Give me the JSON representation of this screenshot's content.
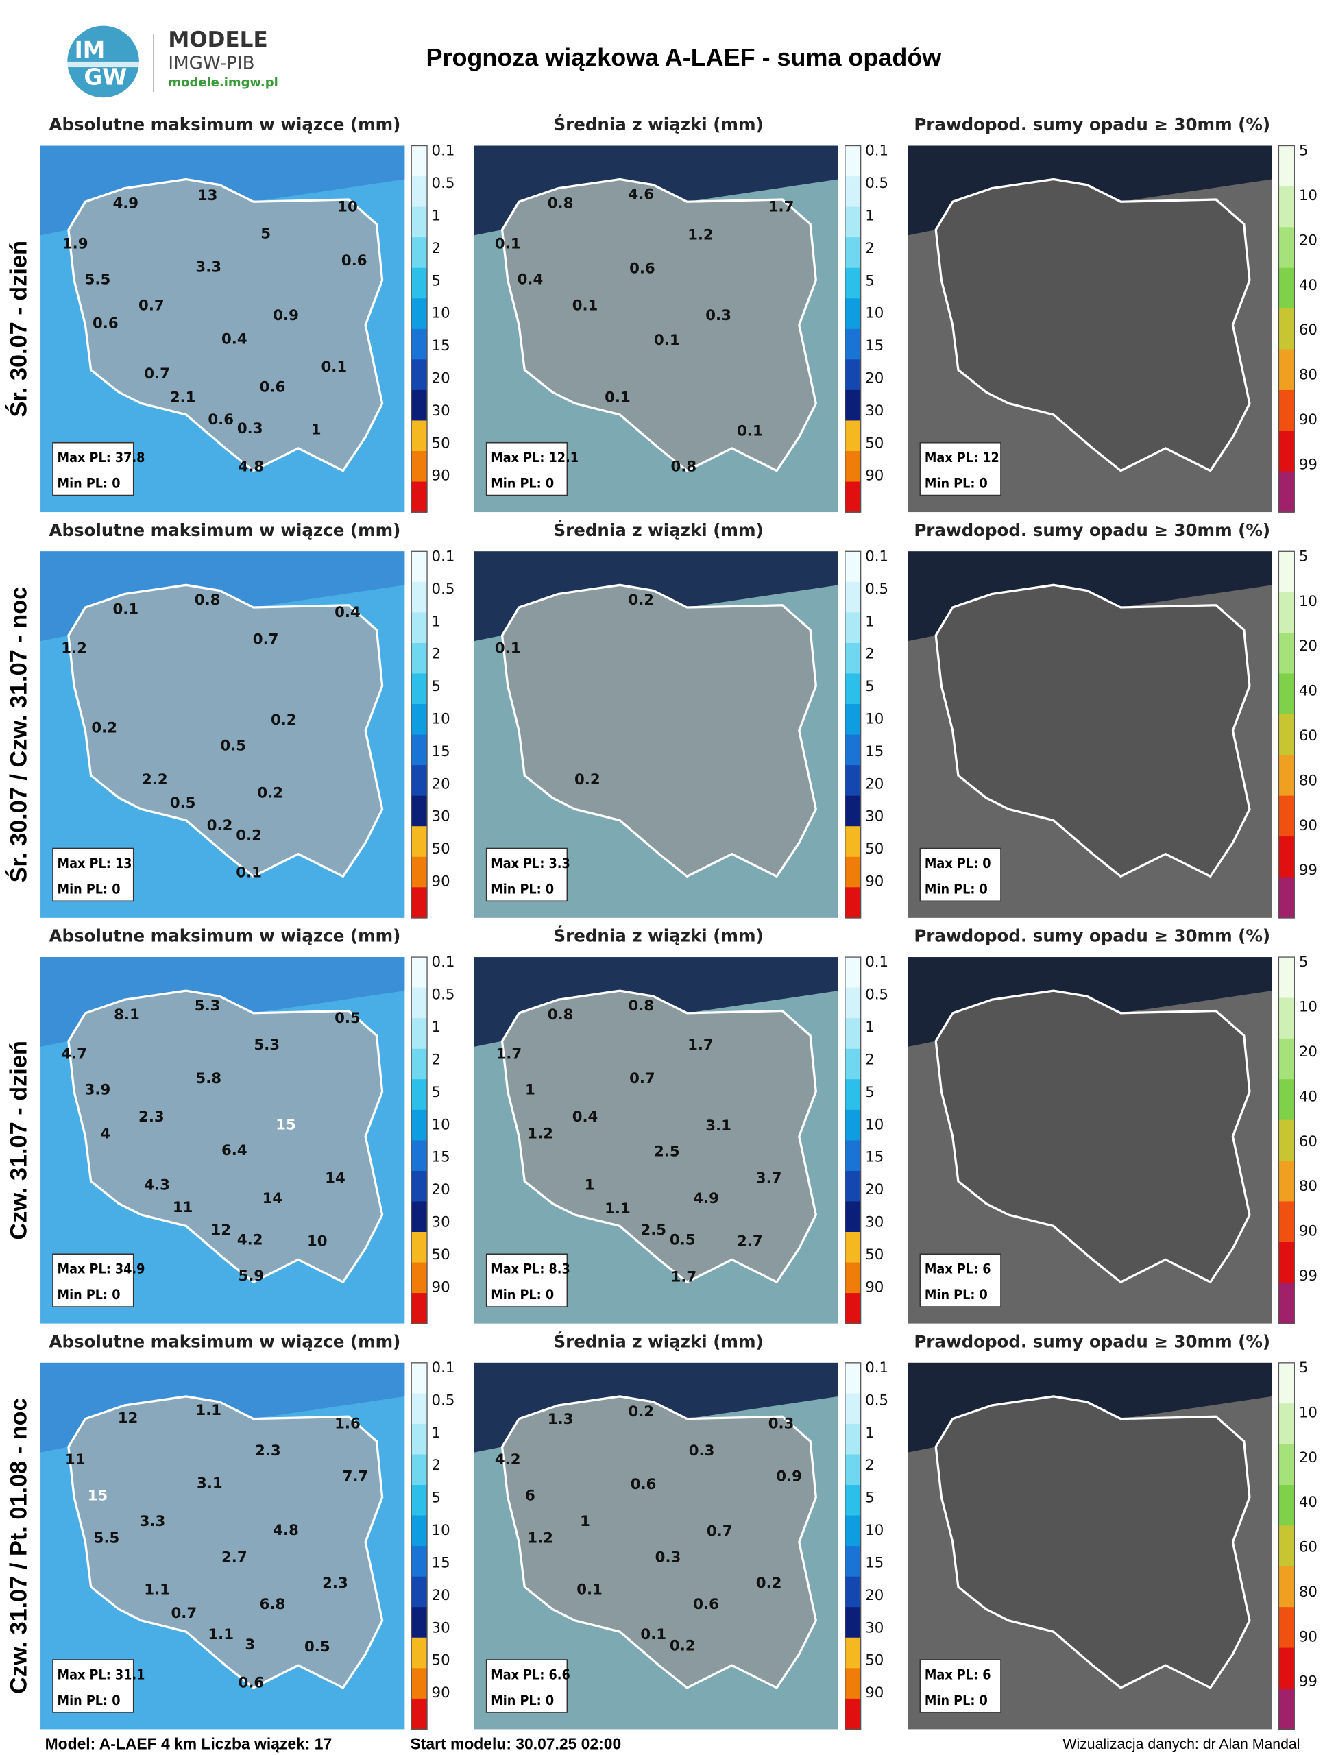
{
  "header": {
    "logo_lines": [
      "IM",
      "GW"
    ],
    "brand": "MODELE",
    "org": "IMGW-PIB",
    "url": "modele.imgw.pl",
    "title": "Prognoza wiązkowa A-LAEF - suma opadów"
  },
  "legends": {
    "precip": [
      "0.1",
      "0.5",
      "1",
      "2",
      "5",
      "10",
      "15",
      "20",
      "30",
      "50",
      "90"
    ],
    "prob": [
      "5",
      "10",
      "20",
      "40",
      "60",
      "80",
      "90",
      "99"
    ]
  },
  "rows": [
    {
      "label": "Śr. 30.07 - dzień",
      "panels": [
        {
          "title": "Absolutne maksimum w wiązce (mm)",
          "labels": [
            "4.9",
            "13",
            "10",
            "1.9",
            "5",
            "3.3",
            "0.6",
            "5.5",
            "0.7",
            "0.9",
            "0.6",
            "0.4",
            "0.1",
            "0.7",
            "0.6",
            "2.1",
            "0.6",
            "0.3",
            "1",
            "4.8"
          ],
          "max": "Max PL: 37.8",
          "min": "Min PL: 0"
        },
        {
          "title": "Średnia z wiązki (mm)",
          "labels": [
            "0.8",
            "4.6",
            "1.7",
            "0.1",
            "1.2",
            "0.6",
            "0.4",
            "0.1",
            "0.3",
            "0.1",
            "0.1",
            "0.1",
            "0.8"
          ],
          "max": "Max PL: 12.1",
          "min": "Min PL: 0"
        },
        {
          "title": "Prawdopod. sumy opadu ≥ 30mm (%)",
          "labels": [],
          "max": "Max PL: 12",
          "min": "Min PL: 0"
        }
      ]
    },
    {
      "label": "Śr. 30.07 / Czw. 31.07 - noc",
      "panels": [
        {
          "title": "Absolutne maksimum w wiązce (mm)",
          "labels": [
            "0.1",
            "0.8",
            "0.4",
            "1.2",
            "0.7",
            "0.2",
            "0.2",
            "0.5",
            "2.2",
            "0.2",
            "0.5",
            "0.2",
            "0.2",
            "0.1"
          ],
          "max": "Max PL: 13",
          "min": "Min PL: 0"
        },
        {
          "title": "Średnia z wiązki (mm)",
          "labels": [
            "0.2",
            "0.1",
            "0.2"
          ],
          "max": "Max PL: 3.3",
          "min": "Min PL: 0"
        },
        {
          "title": "Prawdopod. sumy opadu ≥ 30mm (%)",
          "labels": [],
          "max": "Max PL: 0",
          "min": "Min PL: 0"
        }
      ]
    },
    {
      "label": "Czw. 31.07 - dzień",
      "panels": [
        {
          "title": "Absolutne maksimum w wiązce (mm)",
          "labels": [
            "8.1",
            "5.3",
            "0.5",
            "4.7",
            "5.3",
            "3.9",
            "5.8",
            "2.3",
            "15",
            "4",
            "6.4",
            "14",
            "4.3",
            "14",
            "11",
            "12",
            "4.2",
            "10",
            "5.9"
          ],
          "max": "Max PL: 34.9",
          "min": "Min PL: 0"
        },
        {
          "title": "Średnia z wiązki (mm)",
          "labels": [
            "0.8",
            "0.8",
            "1.7",
            "1.7",
            "1",
            "0.7",
            "0.4",
            "3.1",
            "1.2",
            "2.5",
            "3.7",
            "1",
            "4.9",
            "1.1",
            "2.5",
            "0.5",
            "2.7",
            "1.7"
          ],
          "max": "Max PL: 8.3",
          "min": "Min PL: 0"
        },
        {
          "title": "Prawdopod. sumy opadu ≥ 30mm (%)",
          "labels": [],
          "max": "Max PL: 6",
          "min": "Min PL: 0"
        }
      ]
    },
    {
      "label": "Czw. 31.07 / Pt. 01.08 - noc",
      "panels": [
        {
          "title": "Absolutne maksimum w wiązce (mm)",
          "labels": [
            "1.1",
            "12",
            "1.6",
            "11",
            "2.3",
            "7.7",
            "3.1",
            "15",
            "3.3",
            "4.8",
            "5.5",
            "2.7",
            "2.3",
            "1.1",
            "6.8",
            "0.7",
            "1.1",
            "3",
            "0.5",
            "0.6"
          ],
          "max": "Max PL: 31.1",
          "min": "Min PL: 0"
        },
        {
          "title": "Średnia z wiązki (mm)",
          "labels": [
            "0.2",
            "1.3",
            "0.3",
            "4.2",
            "0.3",
            "0.9",
            "0.6",
            "6",
            "1",
            "0.7",
            "1.2",
            "0.3",
            "0.2",
            "0.1",
            "0.6",
            "0.1",
            "0.2"
          ],
          "max": "Max PL: 6.6",
          "min": "Min PL: 0"
        },
        {
          "title": "Prawdopod. sumy opadu ≥ 30mm (%)",
          "labels": [],
          "max": "Max PL: 6",
          "min": "Min PL: 0"
        }
      ]
    }
  ],
  "footer": {
    "model": "Model: A-LAEF 4 km Liczba wiązek: 17",
    "start": "Start modelu: 30.07.25 02:00",
    "credit": "Wizualizacja danych: dr Alan Mandal"
  }
}
